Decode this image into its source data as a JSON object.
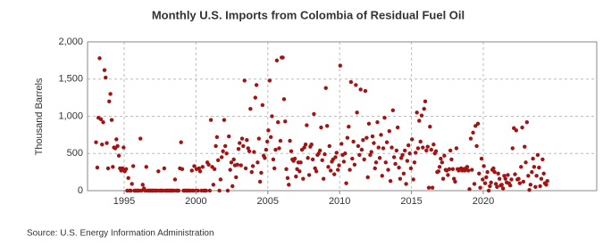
{
  "chart_data": {
    "type": "scatter",
    "title": "Monthly U.S. Imports from Colombia of Residual Fuel Oil",
    "y_label": "Thousand Barrels",
    "source": "Source: U.S. Energy Information Administration",
    "color": "#a31313",
    "grid": true,
    "xlim": [
      1992.45,
      2027.9
    ],
    "xticks": [
      1995,
      2000,
      2005,
      2010,
      2015,
      2020
    ],
    "ylim": [
      0,
      2000
    ],
    "yticks": [
      0,
      500,
      {
        "value": 1000,
        "label": "1,000"
      },
      {
        "value": 1500,
        "label": "1,500"
      },
      {
        "value": 2000,
        "label": "2,000"
      }
    ],
    "x": [
      1993.04,
      1993.13,
      1993.21,
      1993.29,
      1993.38,
      1993.46,
      1993.54,
      1993.63,
      1993.71,
      1993.79,
      1993.88,
      1993.96,
      1994.04,
      1994.13,
      1994.21,
      1994.29,
      1994.38,
      1994.46,
      1994.54,
      1994.63,
      1994.71,
      1994.79,
      1994.88,
      1994.96,
      1995.04,
      1995.13,
      1995.21,
      1995.29,
      1995.38,
      1995.46,
      1995.54,
      1995.63,
      1995.71,
      1995.79,
      1995.88,
      1995.96,
      1996.04,
      1996.13,
      1996.21,
      1996.29,
      1996.38,
      1996.46,
      1996.54,
      1996.63,
      1996.71,
      1996.79,
      1996.88,
      1996.96,
      1997.04,
      1997.13,
      1997.21,
      1997.29,
      1997.38,
      1997.46,
      1997.54,
      1997.63,
      1997.71,
      1997.79,
      1997.88,
      1997.96,
      1998.04,
      1998.13,
      1998.21,
      1998.29,
      1998.38,
      1998.46,
      1998.54,
      1998.63,
      1998.71,
      1998.79,
      1998.88,
      1998.96,
      1999.04,
      1999.13,
      1999.21,
      1999.29,
      1999.38,
      1999.46,
      1999.54,
      1999.63,
      1999.71,
      1999.79,
      1999.88,
      1999.96,
      2000.04,
      2000.13,
      2000.21,
      2000.29,
      2000.38,
      2000.46,
      2000.54,
      2000.63,
      2000.71,
      2000.79,
      2000.88,
      2000.96,
      2001.04,
      2001.13,
      2001.21,
      2001.29,
      2001.38,
      2001.46,
      2001.54,
      2001.63,
      2001.71,
      2001.79,
      2001.88,
      2001.96,
      2002.04,
      2002.13,
      2002.21,
      2002.29,
      2002.38,
      2002.46,
      2002.54,
      2002.63,
      2002.71,
      2002.79,
      2002.88,
      2002.96,
      2003.04,
      2003.13,
      2003.21,
      2003.29,
      2003.38,
      2003.46,
      2003.54,
      2003.63,
      2003.71,
      2003.79,
      2003.88,
      2003.96,
      2004.04,
      2004.13,
      2004.21,
      2004.29,
      2004.38,
      2004.46,
      2004.54,
      2004.63,
      2004.71,
      2004.79,
      2004.88,
      2004.96,
      2005.04,
      2005.13,
      2005.21,
      2005.29,
      2005.38,
      2005.46,
      2005.54,
      2005.63,
      2005.71,
      2005.79,
      2005.88,
      2005.96,
      2006.04,
      2006.13,
      2006.21,
      2006.29,
      2006.38,
      2006.46,
      2006.54,
      2006.63,
      2006.71,
      2006.79,
      2006.88,
      2006.96,
      2007.04,
      2007.13,
      2007.21,
      2007.29,
      2007.38,
      2007.46,
      2007.54,
      2007.63,
      2007.71,
      2007.79,
      2007.88,
      2007.96,
      2008.04,
      2008.13,
      2008.21,
      2008.29,
      2008.38,
      2008.46,
      2008.54,
      2008.63,
      2008.71,
      2008.79,
      2008.88,
      2008.96,
      2009.04,
      2009.13,
      2009.21,
      2009.29,
      2009.38,
      2009.46,
      2009.54,
      2009.63,
      2009.71,
      2009.79,
      2009.88,
      2009.96,
      2010.04,
      2010.13,
      2010.21,
      2010.29,
      2010.38,
      2010.46,
      2010.54,
      2010.63,
      2010.71,
      2010.79,
      2010.88,
      2010.96,
      2011.04,
      2011.13,
      2011.21,
      2011.29,
      2011.38,
      2011.46,
      2011.54,
      2011.63,
      2011.71,
      2011.79,
      2011.88,
      2011.96,
      2012.04,
      2012.13,
      2012.21,
      2012.29,
      2012.38,
      2012.46,
      2012.54,
      2012.63,
      2012.71,
      2012.79,
      2012.88,
      2012.96,
      2013.04,
      2013.13,
      2013.21,
      2013.29,
      2013.38,
      2013.46,
      2013.54,
      2013.63,
      2013.71,
      2013.79,
      2013.88,
      2013.96,
      2014.04,
      2014.13,
      2014.21,
      2014.29,
      2014.38,
      2014.46,
      2014.54,
      2014.63,
      2014.71,
      2014.79,
      2014.88,
      2014.96,
      2015.04,
      2015.13,
      2015.21,
      2015.29,
      2015.38,
      2015.46,
      2015.54,
      2015.63,
      2015.71,
      2015.79,
      2015.88,
      2015.96,
      2016.04,
      2016.13,
      2016.21,
      2016.29,
      2016.38,
      2016.46,
      2016.54,
      2016.63,
      2016.71,
      2016.79,
      2016.88,
      2016.96,
      2017.04,
      2017.13,
      2017.21,
      2017.29,
      2017.38,
      2017.46,
      2017.54,
      2017.63,
      2017.71,
      2017.79,
      2017.88,
      2017.96,
      2018.04,
      2018.13,
      2018.21,
      2018.29,
      2018.38,
      2018.46,
      2018.54,
      2018.63,
      2018.71,
      2018.79,
      2018.88,
      2018.96,
      2019.04,
      2019.13,
      2019.21,
      2019.29,
      2019.38,
      2019.46,
      2019.54,
      2019.63,
      2019.71,
      2019.79,
      2019.88,
      2019.96,
      2020.04,
      2020.13,
      2020.21,
      2020.29,
      2020.38,
      2020.46,
      2020.54,
      2020.63,
      2020.71,
      2020.79,
      2020.88,
      2020.96,
      2021.04,
      2021.13,
      2021.21,
      2021.29,
      2021.38,
      2021.46,
      2021.54,
      2021.63,
      2021.71,
      2021.79,
      2021.88,
      2021.96,
      2022.04,
      2022.13,
      2022.21,
      2022.29,
      2022.38,
      2022.46,
      2022.54,
      2022.63,
      2022.71,
      2022.79,
      2022.88,
      2022.96,
      2023.04,
      2023.13,
      2023.21,
      2023.29,
      2023.38,
      2023.46,
      2023.54,
      2023.63,
      2023.71,
      2023.79,
      2023.88,
      2023.96,
      2024.04,
      2024.13,
      2024.21,
      2024.29,
      2024.38,
      2024.46
    ],
    "values": [
      650,
      310,
      980,
      1780,
      960,
      620,
      920,
      1620,
      1520,
      640,
      300,
      1200,
      1300,
      950,
      320,
      580,
      570,
      690,
      600,
      470,
      300,
      270,
      300,
      580,
      260,
      290,
      0,
      170,
      0,
      0,
      90,
      330,
      0,
      0,
      0,
      0,
      0,
      700,
      0,
      80,
      30,
      0,
      320,
      0,
      0,
      0,
      0,
      0,
      0,
      0,
      0,
      0,
      260,
      0,
      0,
      0,
      0,
      300,
      0,
      0,
      0,
      0,
      0,
      0,
      0,
      0,
      150,
      0,
      0,
      0,
      300,
      650,
      290,
      0,
      0,
      0,
      0,
      0,
      0,
      0,
      270,
      0,
      330,
      0,
      290,
      0,
      300,
      260,
      0,
      320,
      0,
      0,
      0,
      380,
      350,
      0,
      950,
      320,
      80,
      290,
      600,
      720,
      410,
      0,
      150,
      450,
      530,
      950,
      600,
      500,
      0,
      730,
      280,
      380,
      60,
      420,
      340,
      180,
      350,
      560,
      640,
      340,
      700,
      600,
      1480,
      300,
      680,
      570,
      530,
      1100,
      250,
      330,
      520,
      1250,
      1420,
      380,
      700,
      120,
      240,
      1150,
      470,
      440,
      550,
      660,
      810,
      1480,
      720,
      1000,
      420,
      300,
      550,
      1750,
      920,
      570,
      670,
      1790,
      1790,
      1230,
      930,
      290,
      170,
      80,
      670,
      530,
      420,
      400,
      430,
      190,
      290,
      380,
      260,
      380,
      550,
      160,
      580,
      620,
      880,
      440,
      210,
      590,
      620,
      420,
      1030,
      300,
      260,
      480,
      500,
      540,
      850,
      410,
      160,
      490,
      1380,
      870,
      320,
      600,
      270,
      390,
      420,
      220,
      450,
      510,
      280,
      340,
      1680,
      630,
      480,
      390,
      500,
      100,
      710,
      860,
      280,
      1460,
      430,
      660,
      350,
      1420,
      1050,
      600,
      480,
      1360,
      550,
      680,
      420,
      1340,
      710,
      180,
      900,
      480,
      520,
      730,
      640,
      300,
      380,
      920,
      580,
      440,
      750,
      200,
      570,
      980,
      380,
      650,
      280,
      800,
      130,
      580,
      1080,
      450,
      360,
      540,
      850,
      310,
      160,
      440,
      480,
      230,
      540,
      90,
      400,
      610,
      500,
      300,
      690,
      150,
      380,
      510,
      1050,
      570,
      940,
      660,
      1010,
      580,
      1100,
      1200,
      540,
      590,
      40,
      860,
      550,
      40,
      620,
      500,
      530,
      250,
      260,
      320,
      430,
      380,
      160,
      470,
      280,
      270,
      210,
      290,
      540,
      420,
      290,
      160,
      120,
      570,
      290,
      270,
      290,
      300,
      270,
      290,
      270,
      300,
      320,
      270,
      20,
      700,
      280,
      780,
      90,
      870,
      600,
      900,
      230,
      40,
      430,
      150,
      330,
      100,
      180,
      250,
      0,
      60,
      110,
      280,
      300,
      250,
      90,
      50,
      230,
      160,
      70,
      80,
      30,
      200,
      160,
      110,
      210,
      100,
      70,
      150,
      570,
      840,
      220,
      810,
      150,
      160,
      100,
      320,
      850,
      120,
      590,
      380,
      920,
      200,
      10,
      80,
      250,
      430,
      320,
      50,
      200,
      480,
      310,
      60,
      160,
      420,
      230,
      100,
      80,
      130
    ]
  }
}
